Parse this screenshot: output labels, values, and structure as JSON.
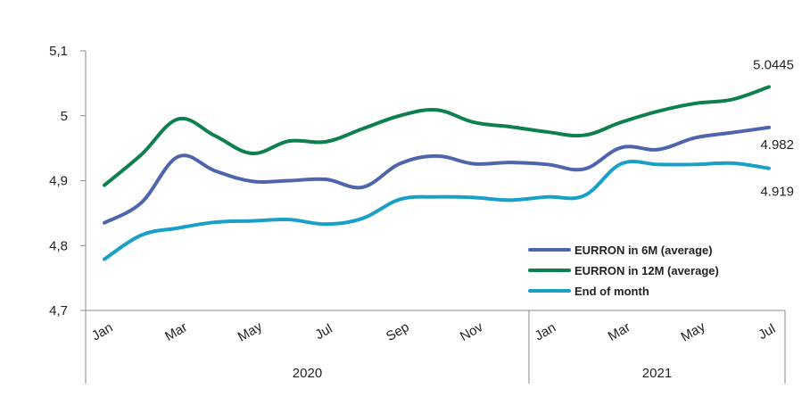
{
  "chart_data": {
    "type": "line",
    "x": [
      "Jan",
      "Feb",
      "Mar",
      "Apr",
      "May",
      "Jun",
      "Jul",
      "Aug",
      "Sep",
      "Oct",
      "Nov",
      "Dec",
      "Jan",
      "Feb",
      "Mar",
      "Apr",
      "May",
      "Jun",
      "Jul"
    ],
    "x_tick_labels": [
      "Jan",
      "",
      "Mar",
      "",
      "May",
      "",
      "Jul",
      "",
      "Sep",
      "",
      "Nov",
      "",
      "Jan",
      "",
      "Mar",
      "",
      "May",
      "",
      "Jul"
    ],
    "year_groups": [
      {
        "label": "2020",
        "start": 0,
        "end": 11
      },
      {
        "label": "2021",
        "start": 12,
        "end": 18
      }
    ],
    "ylim": [
      4.7,
      5.1
    ],
    "y_ticks": [
      "4,7",
      "4,8",
      "4,9",
      "5",
      "5,1"
    ],
    "y_tick_values": [
      4.7,
      4.8,
      4.9,
      5.0,
      5.1
    ],
    "grid": false,
    "legend_position": "bottom-right",
    "series": [
      {
        "name": "EURRON in 6M (average)",
        "color": "#4E64AD",
        "values": [
          4.835,
          4.866,
          4.937,
          4.915,
          4.899,
          4.9,
          4.902,
          4.89,
          4.926,
          4.938,
          4.926,
          4.928,
          4.925,
          4.918,
          4.951,
          4.948,
          4.966,
          4.974,
          4.982
        ]
      },
      {
        "name": "EURRON in 12M (average)",
        "color": "#0E7F4E",
        "values": [
          4.893,
          4.94,
          4.995,
          4.969,
          4.942,
          4.961,
          4.96,
          4.98,
          5.0,
          5.009,
          4.99,
          4.983,
          4.975,
          4.97,
          4.99,
          5.007,
          5.019,
          5.025,
          5.0445
        ]
      },
      {
        "name": "End of month",
        "color": "#18A0C6",
        "values": [
          4.779,
          4.816,
          4.827,
          4.836,
          4.838,
          4.84,
          4.833,
          4.842,
          4.871,
          4.875,
          4.874,
          4.87,
          4.875,
          4.877,
          4.926,
          4.925,
          4.925,
          4.927,
          4.919
        ]
      }
    ],
    "data_labels": [
      {
        "series": 1,
        "index": 18,
        "text": "5.0445"
      },
      {
        "series": 0,
        "index": 18,
        "text": "4.982"
      },
      {
        "series": 2,
        "index": 18,
        "text": "4.919"
      }
    ]
  }
}
